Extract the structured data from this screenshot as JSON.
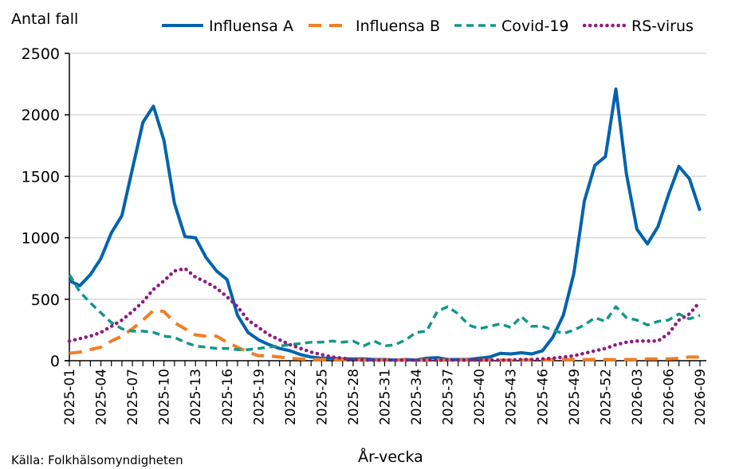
{
  "chart_data": {
    "type": "line",
    "ylabel": "Antal fall",
    "xlabel": "År-vecka",
    "source": "Källa: Folkhälsomyndigheten",
    "ylim": [
      0,
      2500
    ],
    "yticks": [
      0,
      500,
      1000,
      1500,
      2000,
      2500
    ],
    "grid": "horizontal",
    "legend_position": "top",
    "categories": [
      "2025-01",
      "2025-02",
      "2025-03",
      "2025-04",
      "2025-05",
      "2025-06",
      "2025-07",
      "2025-08",
      "2025-09",
      "2025-10",
      "2025-11",
      "2025-12",
      "2025-13",
      "2025-14",
      "2025-15",
      "2025-16",
      "2025-17",
      "2025-18",
      "2025-19",
      "2025-20",
      "2025-21",
      "2025-22",
      "2025-23",
      "2025-24",
      "2025-25",
      "2025-26",
      "2025-27",
      "2025-28",
      "2025-29",
      "2025-30",
      "2025-31",
      "2025-32",
      "2025-33",
      "2025-34",
      "2025-35",
      "2025-36",
      "2025-37",
      "2025-38",
      "2025-39",
      "2025-40",
      "2025-41",
      "2025-42",
      "2025-43",
      "2025-44",
      "2025-45",
      "2025-46",
      "2025-47",
      "2025-48",
      "2025-49",
      "2025-50",
      "2025-51",
      "2025-52",
      "2026-01",
      "2026-02",
      "2026-03",
      "2026-04",
      "2026-05",
      "2026-06",
      "2026-07",
      "2026-08",
      "2026-09"
    ],
    "xticks": [
      "2025-01",
      "2025-04",
      "2025-07",
      "2025-10",
      "2025-13",
      "2025-16",
      "2025-19",
      "2025-22",
      "2025-25",
      "2025-28",
      "2025-31",
      "2025-34",
      "2025-37",
      "2025-40",
      "2025-43",
      "2025-46",
      "2025-49",
      "2025-52",
      "2026-03",
      "2026-06",
      "2026-09"
    ],
    "series": [
      {
        "name": "Influensa A",
        "color": "#0063AD",
        "style": "solid",
        "values": [
          650,
          610,
          700,
          830,
          1040,
          1180,
          1560,
          1940,
          2070,
          1790,
          1280,
          1010,
          1000,
          840,
          730,
          660,
          370,
          230,
          170,
          130,
          100,
          80,
          50,
          30,
          20,
          20,
          15,
          15,
          15,
          10,
          10,
          5,
          10,
          5,
          20,
          25,
          10,
          10,
          10,
          20,
          30,
          60,
          55,
          65,
          55,
          80,
          190,
          370,
          710,
          1300,
          1590,
          1660,
          2210,
          1520,
          1070,
          950,
          1090,
          1350,
          1580,
          1480,
          1220
        ]
      },
      {
        "name": "Influensa B",
        "color": "#F07F22",
        "style": "dashed",
        "values": [
          60,
          70,
          90,
          110,
          160,
          200,
          260,
          330,
          410,
          400,
          310,
          260,
          210,
          200,
          200,
          150,
          110,
          70,
          40,
          40,
          30,
          20,
          15,
          10,
          10,
          10,
          10,
          10,
          5,
          5,
          5,
          5,
          5,
          5,
          5,
          5,
          5,
          5,
          5,
          5,
          5,
          5,
          5,
          5,
          5,
          5,
          10,
          10,
          10,
          10,
          10,
          10,
          10,
          10,
          10,
          15,
          15,
          15,
          20,
          30,
          30
        ]
      },
      {
        "name": "Covid-19",
        "color": "#14968A",
        "style": "short-dashed",
        "values": [
          700,
          560,
          470,
          390,
          310,
          260,
          240,
          240,
          230,
          200,
          190,
          150,
          120,
          110,
          100,
          100,
          90,
          90,
          100,
          110,
          120,
          130,
          140,
          150,
          150,
          160,
          150,
          160,
          120,
          160,
          120,
          130,
          170,
          230,
          240,
          400,
          440,
          380,
          290,
          260,
          280,
          300,
          270,
          360,
          280,
          280,
          250,
          220,
          250,
          290,
          350,
          320,
          440,
          350,
          330,
          290,
          320,
          330,
          380,
          340,
          370
        ]
      },
      {
        "name": "RS-virus",
        "color": "#8E1A7F",
        "style": "dotted",
        "values": [
          160,
          180,
          200,
          230,
          280,
          330,
          400,
          480,
          580,
          650,
          730,
          750,
          680,
          640,
          590,
          520,
          440,
          330,
          270,
          210,
          170,
          130,
          100,
          70,
          50,
          30,
          20,
          10,
          5,
          5,
          5,
          5,
          5,
          5,
          5,
          5,
          5,
          5,
          5,
          5,
          5,
          5,
          5,
          10,
          10,
          15,
          20,
          30,
          40,
          60,
          80,
          100,
          130,
          150,
          160,
          160,
          160,
          220,
          330,
          380,
          480
        ]
      }
    ]
  }
}
